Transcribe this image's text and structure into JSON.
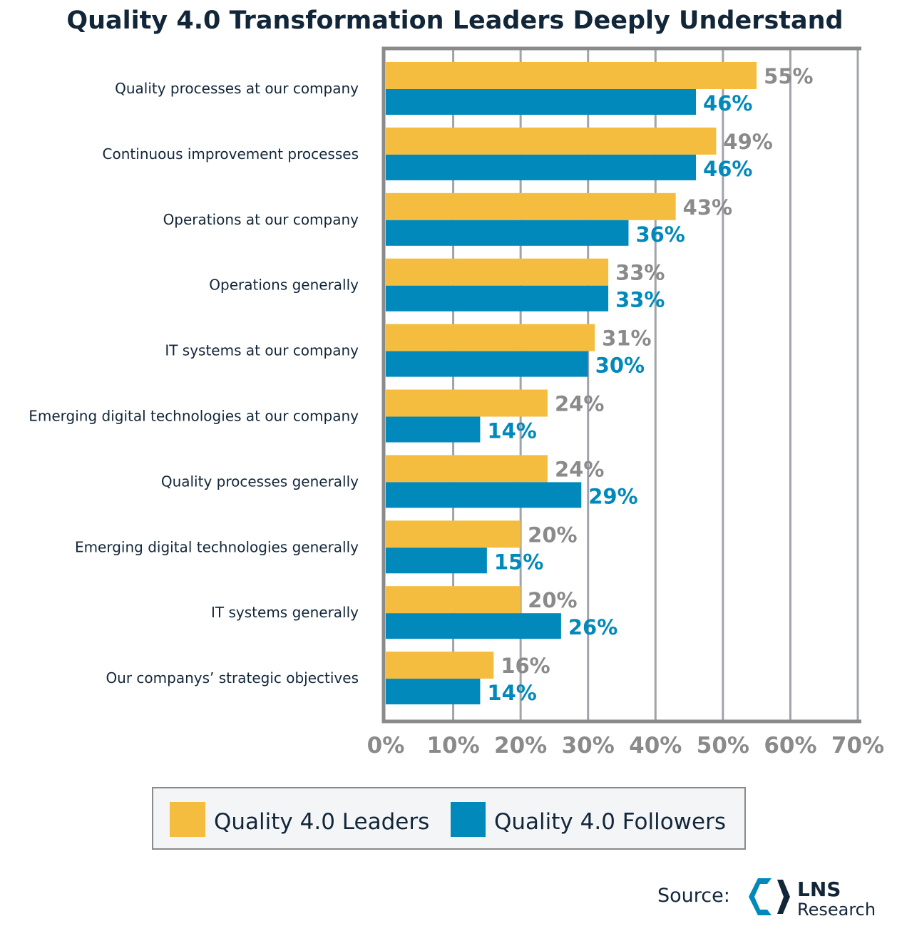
{
  "chart_data": {
    "type": "bar",
    "orientation": "horizontal",
    "title": "Quality 4.0 Transformation Leaders Deeply Understand",
    "categories": [
      "Quality processes at our company",
      "Continuous improvement processes",
      "Operations at our company",
      "Operations generally",
      "IT systems at our company",
      "Emerging digital technologies at our company",
      "Quality processes generally",
      "Emerging digital technologies generally",
      "IT systems generally",
      "Our companys’ strategic objectives"
    ],
    "series": [
      {
        "name": "Quality 4.0 Leaders",
        "color": "#F4BD40",
        "label_color": "#8a8a8a",
        "values": [
          55,
          49,
          43,
          33,
          31,
          24,
          24,
          20,
          20,
          16
        ]
      },
      {
        "name": "Quality 4.0 Followers",
        "color": "#0089BA",
        "label_color": "#0089BA",
        "values": [
          46,
          46,
          36,
          33,
          30,
          14,
          29,
          15,
          26,
          14
        ]
      }
    ],
    "xlim": [
      0,
      70
    ],
    "xticks": [
      "0%",
      "10%",
      "20%",
      "30%",
      "40%",
      "50%",
      "60%",
      "70%"
    ],
    "grid": true,
    "legend_placement": "bottom",
    "value_suffix": "%"
  },
  "source": {
    "label": "Source:",
    "logo_text": "LNS Research"
  }
}
